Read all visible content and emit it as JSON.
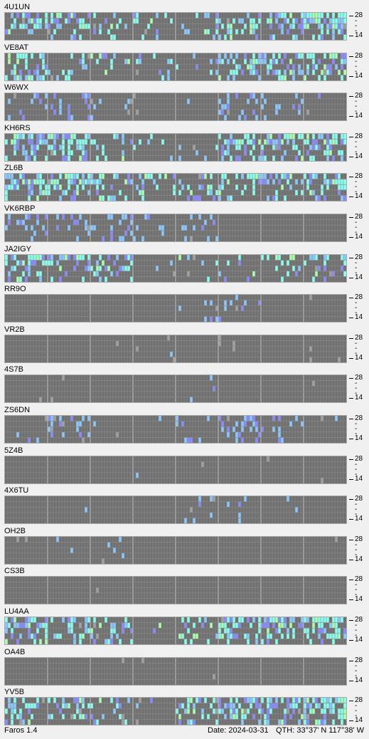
{
  "palette": {
    "grid_bg": "#707070",
    "grid_line": "#8a8a8a",
    "hour_line": "#b8b8b8",
    "weak": "#8a8aff",
    "mid": "#88c8ff",
    "strong": "#88ffee",
    "very_strong": "#aaffaa",
    "noise": "#a0a0a0"
  },
  "scale": {
    "top_label": "28",
    "bottom_label": "14",
    "mid_mark": "-"
  },
  "stations": [
    {
      "callsign": "4U1UN",
      "activity": [
        0.55,
        0.45,
        0.2,
        0.25,
        0.2,
        0.35,
        0.55,
        0.75
      ],
      "level": 3
    },
    {
      "callsign": "VE8AT",
      "activity": [
        0.6,
        0.4,
        0.2,
        0.15,
        0.1,
        0.5,
        0.55,
        0.6
      ],
      "level": 3
    },
    {
      "callsign": "W6WX",
      "activity": [
        0.3,
        0.35,
        0.1,
        0.02,
        0.02,
        0.25,
        0.2,
        0.1
      ],
      "level": 2
    },
    {
      "callsign": "KH6RS",
      "activity": [
        0.6,
        0.55,
        0.2,
        0.1,
        0.05,
        0.55,
        0.6,
        0.55
      ],
      "level": 3
    },
    {
      "callsign": "ZL6B",
      "activity": [
        0.7,
        0.6,
        0.45,
        0.3,
        0.3,
        0.35,
        0.45,
        0.4
      ],
      "level": 3
    },
    {
      "callsign": "VK6RBP",
      "activity": [
        0.25,
        0.2,
        0.35,
        0.1,
        0.15,
        0.02,
        0.02,
        0.02
      ],
      "level": 2
    },
    {
      "callsign": "JA2IGY",
      "activity": [
        0.55,
        0.45,
        0.4,
        0.1,
        0.05,
        0.15,
        0.25,
        0.25
      ],
      "level": 3
    },
    {
      "callsign": "RR9O",
      "activity": [
        0.0,
        0.0,
        0.0,
        0.0,
        0.05,
        0.1,
        0.0,
        0.0
      ],
      "level": 2
    },
    {
      "callsign": "VR2B",
      "activity": [
        0.0,
        0.0,
        0.0,
        0.02,
        0.0,
        0.0,
        0.0,
        0.0
      ],
      "level": 1
    },
    {
      "callsign": "4S7B",
      "activity": [
        0.0,
        0.0,
        0.0,
        0.0,
        0.02,
        0.02,
        0.0,
        0.0
      ],
      "level": 1
    },
    {
      "callsign": "ZS6DN",
      "activity": [
        0.05,
        0.15,
        0.02,
        0.02,
        0.1,
        0.45,
        0.25,
        0.05
      ],
      "level": 2
    },
    {
      "callsign": "5Z4B",
      "activity": [
        0.0,
        0.0,
        0.0,
        0.02,
        0.0,
        0.0,
        0.0,
        0.0
      ],
      "level": 1
    },
    {
      "callsign": "4X6TU",
      "activity": [
        0.0,
        0.05,
        0.0,
        0.02,
        0.05,
        0.1,
        0.05,
        0.0
      ],
      "level": 2
    },
    {
      "callsign": "OH2B",
      "activity": [
        0.0,
        0.05,
        0.05,
        0.0,
        0.0,
        0.0,
        0.0,
        0.0
      ],
      "level": 1
    },
    {
      "callsign": "CS3B",
      "activity": [
        0.0,
        0.0,
        0.0,
        0.0,
        0.0,
        0.0,
        0.0,
        0.0
      ],
      "level": 1
    },
    {
      "callsign": "LU4AA",
      "activity": [
        0.6,
        0.5,
        0.25,
        0.05,
        0.25,
        0.55,
        0.4,
        0.7
      ],
      "level": 3
    },
    {
      "callsign": "OA4B",
      "activity": [
        0.0,
        0.02,
        0.0,
        0.0,
        0.0,
        0.0,
        0.0,
        0.0
      ],
      "level": 1
    },
    {
      "callsign": "YV5B",
      "activity": [
        0.45,
        0.35,
        0.3,
        0.05,
        0.35,
        0.55,
        0.6,
        0.7
      ],
      "level": 3
    }
  ],
  "status": {
    "app": "Faros 1.4",
    "date": "Date: 2024-03-31",
    "qth": "QTH: 33°37' N  117°38' W"
  }
}
